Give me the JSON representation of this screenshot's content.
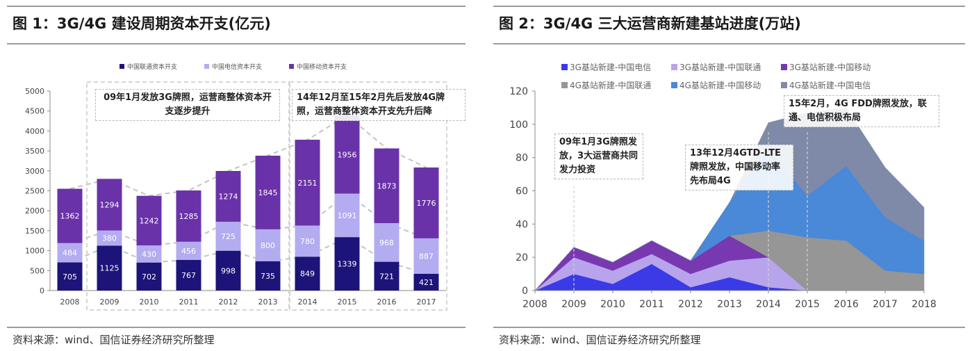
{
  "left": {
    "title": "图 1：3G/4G 建设周期资本开支(亿元)",
    "source": "资料来源：wind、国信证券经济研究所整理",
    "annotation_1": "09年1月发放3G牌照，运营商整体资本开支逐步提升",
    "annotation_2": "14年12月至15年2月先后发放4G牌照，运营商整体资本开支先升后降",
    "chart_data": {
      "type": "bar",
      "stacked": true,
      "categories": [
        "2008",
        "2009",
        "2010",
        "2011",
        "2012",
        "2013",
        "2014",
        "2015",
        "2016",
        "2017"
      ],
      "series": [
        {
          "name": "中国联通资本开支",
          "color": "#1c1478",
          "values": [
            705,
            1125,
            702,
            767,
            998,
            735,
            849,
            1339,
            721,
            421
          ]
        },
        {
          "name": "中国电信资本开支",
          "color": "#b4acf0",
          "values": [
            484,
            380,
            430,
            456,
            725,
            800,
            780,
            1091,
            968,
            887
          ]
        },
        {
          "name": "中国移动资本开支",
          "color": "#6a32a8",
          "values": [
            1362,
            1294,
            1242,
            1285,
            1274,
            1845,
            2151,
            1956,
            1873,
            1776
          ]
        }
      ],
      "ylim": [
        0,
        5000
      ],
      "yticks": [
        0,
        500,
        1000,
        1500,
        2000,
        2500,
        3000,
        3500,
        4000,
        4500,
        5000
      ],
      "legend_position": "top",
      "grid": false
    }
  },
  "right": {
    "title": "图 2：3G/4G 三大运营商新建基站进度(万站)",
    "source": "资料来源：wind、国信证券经济研究所整理",
    "annotation_1": "09年1月3G牌照发放，3大运营商共同发力投资",
    "annotation_2": "13年12月4GTD-LTE牌照发放，中国移动率先布局4G",
    "annotation_3": "15年2月，4G FDD牌照发放，联通、电信积极布局",
    "chart_data": {
      "type": "area",
      "stacked": true,
      "x": [
        "2008",
        "2009",
        "2010",
        "2011",
        "2012",
        "2013",
        "2014",
        "2015",
        "2016",
        "2017",
        "2018"
      ],
      "series": [
        {
          "name": "3G基站新建-中国电信",
          "color": "#3a3ae6",
          "values": [
            0,
            10,
            4,
            16,
            2,
            8,
            2,
            0,
            0,
            0,
            0
          ]
        },
        {
          "name": "3G基站新建-中国联通",
          "color": "#b8a4ec",
          "values": [
            0,
            10,
            8,
            6,
            8,
            10,
            18,
            0,
            0,
            0,
            0
          ]
        },
        {
          "name": "3G基站新建-中国移动",
          "color": "#7838b0",
          "values": [
            0,
            6,
            5,
            8,
            8,
            15,
            0,
            0,
            0,
            0,
            0
          ]
        },
        {
          "name": "4G基站新建-中国联通",
          "color": "#969696",
          "values": [
            0,
            0,
            0,
            0,
            0,
            0,
            16,
            32,
            30,
            12,
            10
          ]
        },
        {
          "name": "4G基站新建-中国移动",
          "color": "#4a88d8",
          "values": [
            0,
            0,
            0,
            0,
            0,
            20,
            50,
            25,
            45,
            32,
            20
          ]
        },
        {
          "name": "4G基站新建-中国电信",
          "color": "#7f8aa8",
          "values": [
            0,
            0,
            0,
            0,
            0,
            0,
            15,
            50,
            35,
            30,
            20
          ]
        }
      ],
      "ylim": [
        0,
        120
      ],
      "yticks": [
        0,
        20,
        40,
        60,
        80,
        100,
        120
      ],
      "legend_position": "top",
      "grid": false
    }
  }
}
